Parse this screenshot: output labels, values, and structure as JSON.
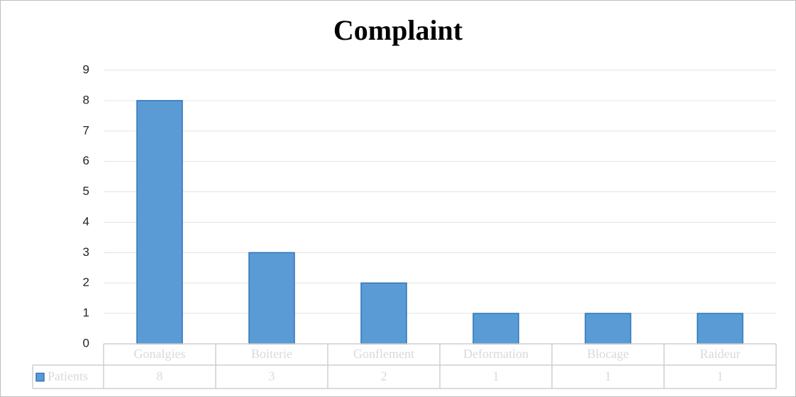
{
  "chart_data": {
    "type": "bar",
    "title": "Complaint",
    "categories": [
      "Gonalgies",
      "Boiterie",
      "Gonflement",
      "Deformation",
      "Blocage",
      "Raideur"
    ],
    "series": [
      {
        "name": "Patients",
        "color": "#5b9bd5",
        "values": [
          8,
          3,
          2,
          1,
          1,
          1
        ]
      }
    ],
    "ylim": [
      0,
      9
    ],
    "yticks": [
      0,
      1,
      2,
      3,
      4,
      5,
      6,
      7,
      8,
      9
    ],
    "grid": true,
    "data_table": true
  }
}
